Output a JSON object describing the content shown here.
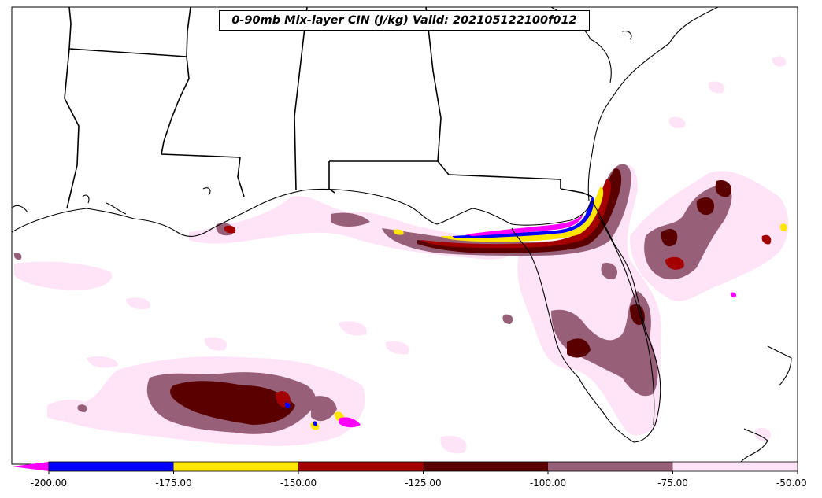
{
  "title": "0-90mb Mix-layer CIN (J/kg) Valid: 202105122100f012",
  "colorbar": {
    "extend_min_color": "#ff00ff",
    "bins": [
      {
        "from": -200,
        "to": -175,
        "color": "#0000ff"
      },
      {
        "from": -175,
        "to": -150,
        "color": "#ffe600"
      },
      {
        "from": -150,
        "to": -125,
        "color": "#a50000"
      },
      {
        "from": -125,
        "to": -100,
        "color": "#5a0000"
      },
      {
        "from": -100,
        "to": -75,
        "color": "#986078"
      },
      {
        "from": -75,
        "to": -50,
        "color": "#ffe4f8"
      }
    ],
    "tick_labels": [
      "-200.00",
      "-175.00",
      "-150.00",
      "-125.00",
      "-100.00",
      "-75.00",
      "-50.00"
    ]
  }
}
